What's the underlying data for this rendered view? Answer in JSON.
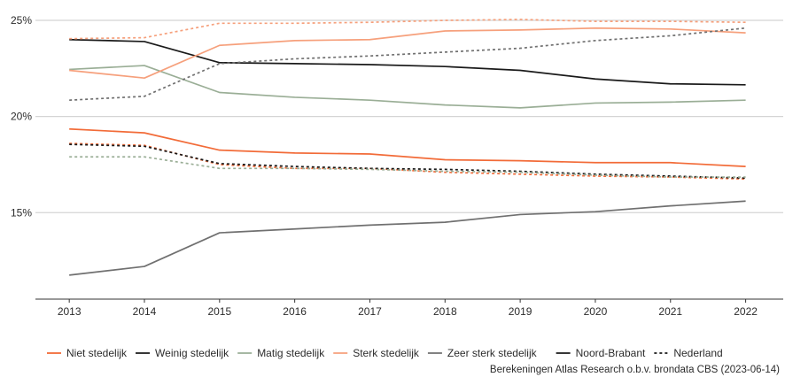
{
  "chart_data": {
    "type": "line",
    "x": [
      2013,
      2014,
      2015,
      2016,
      2017,
      2018,
      2019,
      2020,
      2021,
      2022
    ],
    "xlim": [
      2012.55,
      2022.5
    ],
    "ylim": [
      10.5,
      25.6
    ],
    "y_ticks": [
      15,
      20,
      25
    ],
    "y_tick_labels": [
      "15%",
      "20%",
      "25%"
    ],
    "grid": "horizontal",
    "legend_position": "bottom",
    "caption": "Berekeningen Atlas Research o.b.v. brondata CBS (2023-06-14)",
    "categories": [
      {
        "name": "Niet stedelijk",
        "color": "#f26b38"
      },
      {
        "name": "Weinig stedelijk",
        "color": "#1a1a1a"
      },
      {
        "name": "Matig stedelijk",
        "color": "#9aae96"
      },
      {
        "name": "Sterk stedelijk",
        "color": "#f6a07c"
      },
      {
        "name": "Zeer sterk stedelijk",
        "color": "#707070"
      }
    ],
    "linetypes": [
      {
        "name": "Noord-Brabant",
        "style": "solid"
      },
      {
        "name": "Nederland",
        "style": "dashed"
      }
    ],
    "series": [
      {
        "category": "Niet stedelijk",
        "area": "Noord-Brabant",
        "color": "#f26b38",
        "style": "solid",
        "values": [
          19.35,
          19.15,
          18.25,
          18.1,
          18.05,
          17.75,
          17.7,
          17.6,
          17.6,
          17.4
        ]
      },
      {
        "category": "Niet stedelijk",
        "area": "Nederland",
        "color": "#f26b38",
        "style": "dashed",
        "values": [
          18.6,
          18.5,
          17.5,
          17.3,
          17.3,
          17.1,
          17.0,
          16.9,
          16.85,
          16.75
        ]
      },
      {
        "category": "Weinig stedelijk",
        "area": "Noord-Brabant",
        "color": "#1a1a1a",
        "style": "solid",
        "values": [
          24.0,
          23.9,
          22.8,
          22.75,
          22.7,
          22.6,
          22.4,
          21.95,
          21.7,
          21.65
        ]
      },
      {
        "category": "Weinig stedelijk",
        "area": "Nederland",
        "color": "#1a1a1a",
        "style": "dashed",
        "values": [
          18.55,
          18.45,
          17.55,
          17.4,
          17.3,
          17.25,
          17.15,
          17.0,
          16.9,
          16.8
        ]
      },
      {
        "category": "Matig stedelijk",
        "area": "Noord-Brabant",
        "color": "#9aae96",
        "style": "solid",
        "values": [
          22.45,
          22.65,
          21.25,
          21.0,
          20.85,
          20.6,
          20.45,
          20.7,
          20.75,
          20.85
        ]
      },
      {
        "category": "Matig stedelijk",
        "area": "Nederland",
        "color": "#9aae96",
        "style": "dashed",
        "values": [
          17.9,
          17.9,
          17.3,
          17.3,
          17.25,
          17.15,
          17.1,
          16.95,
          16.85,
          16.85
        ]
      },
      {
        "category": "Sterk stedelijk",
        "area": "Noord-Brabant",
        "color": "#f6a07c",
        "style": "solid",
        "values": [
          22.4,
          22.0,
          23.7,
          23.95,
          24.0,
          24.45,
          24.5,
          24.6,
          24.55,
          24.35
        ]
      },
      {
        "category": "Sterk stedelijk",
        "area": "Nederland",
        "color": "#f6a07c",
        "style": "dashed",
        "values": [
          24.05,
          24.1,
          24.85,
          24.85,
          24.9,
          25.0,
          25.05,
          24.95,
          24.95,
          24.9
        ]
      },
      {
        "category": "Zeer sterk stedelijk",
        "area": "Noord-Brabant",
        "color": "#707070",
        "style": "solid",
        "values": [
          11.75,
          12.2,
          13.95,
          14.15,
          14.35,
          14.5,
          14.9,
          15.05,
          15.35,
          15.6
        ]
      },
      {
        "category": "Zeer sterk stedelijk",
        "area": "Nederland",
        "color": "#707070",
        "style": "dashed",
        "values": [
          20.85,
          21.05,
          22.75,
          23.0,
          23.15,
          23.35,
          23.55,
          23.95,
          24.2,
          24.6
        ]
      }
    ]
  }
}
